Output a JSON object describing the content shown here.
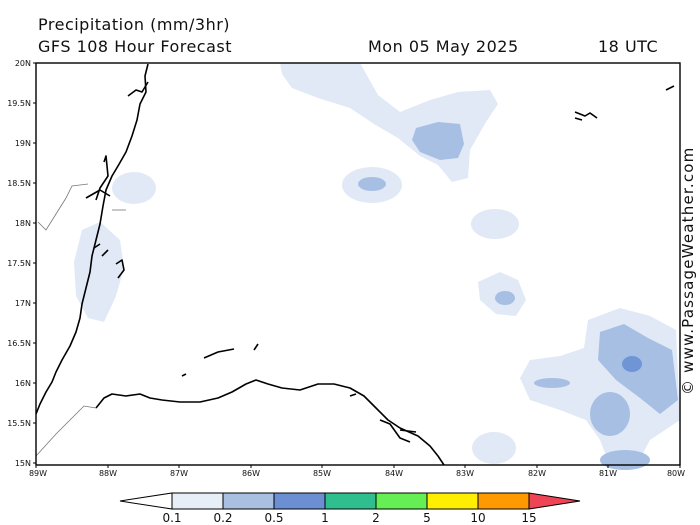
{
  "header": {
    "title": "Precipitation (mm/3hr)",
    "subtitle": "GFS 108 Hour Forecast",
    "date": "Mon 05 May 2025",
    "time": "18 UTC"
  },
  "credit": "© www.PassageWeather.com",
  "map": {
    "lat_labels": [
      "20N",
      "19.5N",
      "19N",
      "18.5N",
      "18N",
      "17.5N",
      "17N",
      "16.5N",
      "16N",
      "15.5N",
      "15N"
    ],
    "lon_labels": [
      "89W",
      "88W",
      "87W",
      "86W",
      "85W",
      "84W",
      "83W",
      "82W",
      "81W",
      "80W"
    ],
    "lat_range": [
      15,
      20
    ],
    "lon_range": [
      -89,
      -80
    ]
  },
  "legend": {
    "labels": [
      "0.1",
      "0.2",
      "0.5",
      "1",
      "2",
      "5",
      "10",
      "15"
    ],
    "colors": [
      "#e6eef8",
      "#a9c0e0",
      "#6c8fd4",
      "#2fbf8f",
      "#66ee55",
      "#ffee00",
      "#ff9900",
      "#ee4455"
    ]
  },
  "colors": {
    "precip_light": "#e1e9f6",
    "precip_mid": "#a6bfe3",
    "precip_dark": "#6f95d6",
    "coast": "#000000",
    "border": "#777777"
  }
}
